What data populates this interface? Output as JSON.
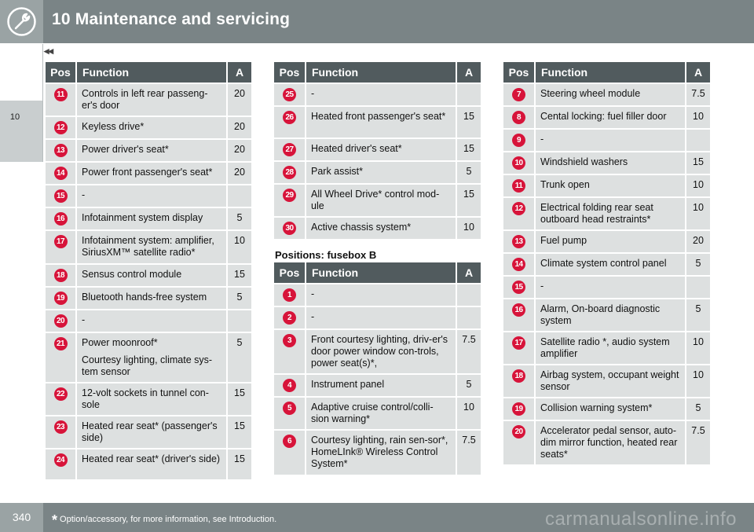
{
  "header": {
    "title": "10 Maintenance and servicing",
    "icon": "wrench-icon"
  },
  "sidebar": {
    "chapter": "10"
  },
  "nav": {
    "back": "◂◂"
  },
  "columns": {
    "pos": "Pos",
    "function": "Function",
    "a": "A"
  },
  "table1": {
    "rows": [
      {
        "pos": "11",
        "fn": "Controls in left rear passeng-er's door",
        "a": "20"
      },
      {
        "pos": "12",
        "fn": "Keyless drive*",
        "a": "20"
      },
      {
        "pos": "13",
        "fn": "Power driver's seat*",
        "a": "20"
      },
      {
        "pos": "14",
        "fn": "Power front passenger's seat*",
        "a": "20"
      },
      {
        "pos": "15",
        "fn": "-",
        "a": ""
      },
      {
        "pos": "16",
        "fn": "Infotainment system display",
        "a": "5"
      },
      {
        "pos": "17",
        "fn": "Infotainment system: amplifier, SiriusXM™ satellite radio*",
        "a": "10"
      },
      {
        "pos": "18",
        "fn": "Sensus control module",
        "a": "15"
      },
      {
        "pos": "19",
        "fn": "Bluetooth hands-free system",
        "a": "5"
      },
      {
        "pos": "20",
        "fn": "-",
        "a": ""
      },
      {
        "pos": "21",
        "fn": "Power moonroof*",
        "fn2": "Courtesy lighting, climate sys-tem sensor",
        "a": "5"
      },
      {
        "pos": "22",
        "fn": "12-volt sockets in tunnel con-sole",
        "a": "15"
      },
      {
        "pos": "23",
        "fn": "Heated rear seat* (passenger's side)",
        "a": "15"
      },
      {
        "pos": "24",
        "fn": "Heated rear seat* (driver's side)",
        "a": "15"
      }
    ]
  },
  "table2": {
    "rows": [
      {
        "pos": "25",
        "fn": "-",
        "a": ""
      },
      {
        "pos": "26",
        "fn": "Heated front passenger's seat*",
        "a": "15"
      },
      {
        "pos": "27",
        "fn": "Heated driver's seat*",
        "a": "15"
      },
      {
        "pos": "28",
        "fn": "Park assist*",
        "a": "5"
      },
      {
        "pos": "29",
        "fn": "All Wheel Drive* control mod-ule",
        "a": "15"
      },
      {
        "pos": "30",
        "fn": "Active chassis system*",
        "a": "10"
      }
    ]
  },
  "section_b": {
    "title": "Positions: fusebox B"
  },
  "table3": {
    "rows": [
      {
        "pos": "1",
        "fn": "-",
        "a": ""
      },
      {
        "pos": "2",
        "fn": "-",
        "a": ""
      },
      {
        "pos": "3",
        "fn": "Front courtesy lighting, driv-er's door power window con-trols, power seat(s)*,",
        "a": "7.5"
      },
      {
        "pos": "4",
        "fn": "Instrument panel",
        "a": "5"
      },
      {
        "pos": "5",
        "fn": "Adaptive cruise control/colli-sion warning*",
        "a": "10"
      },
      {
        "pos": "6",
        "fn": "Courtesy lighting, rain sen-sor*, HomeLInk® Wireless Control System*",
        "a": "7.5"
      }
    ]
  },
  "table4": {
    "rows": [
      {
        "pos": "7",
        "fn": "Steering wheel module",
        "a": "7.5"
      },
      {
        "pos": "8",
        "fn": "Cental locking: fuel filler door",
        "a": "10"
      },
      {
        "pos": "9",
        "fn": "-",
        "a": ""
      },
      {
        "pos": "10",
        "fn": "Windshield washers",
        "a": "15"
      },
      {
        "pos": "11",
        "fn": "Trunk open",
        "a": "10"
      },
      {
        "pos": "12",
        "fn": "Electrical folding rear seat outboard head restraints*",
        "a": "10"
      },
      {
        "pos": "13",
        "fn": "Fuel pump",
        "a": "20"
      },
      {
        "pos": "14",
        "fn": "Climate system control panel",
        "a": "5"
      },
      {
        "pos": "15",
        "fn": "-",
        "a": ""
      },
      {
        "pos": "16",
        "fn": "Alarm, On-board diagnostic system",
        "a": "5"
      },
      {
        "pos": "17",
        "fn": "Satellite radio *, audio system amplifier",
        "a": "10"
      },
      {
        "pos": "18",
        "fn": "Airbag system, occupant weight sensor",
        "a": "10"
      },
      {
        "pos": "19",
        "fn": "Collision warning system*",
        "a": "5"
      },
      {
        "pos": "20",
        "fn": "Accelerator pedal sensor, auto-dim mirror function, heated rear seats*",
        "a": "7.5"
      }
    ]
  },
  "footer": {
    "page": "340",
    "star": "*",
    "note": "Option/accessory, for more information, see Introduction.",
    "watermark": "carmanualsonline.info"
  },
  "colors": {
    "badge": "#d7143a",
    "header": "#7a8486",
    "table_header": "#515b5e",
    "cell": "#dde0e0"
  }
}
